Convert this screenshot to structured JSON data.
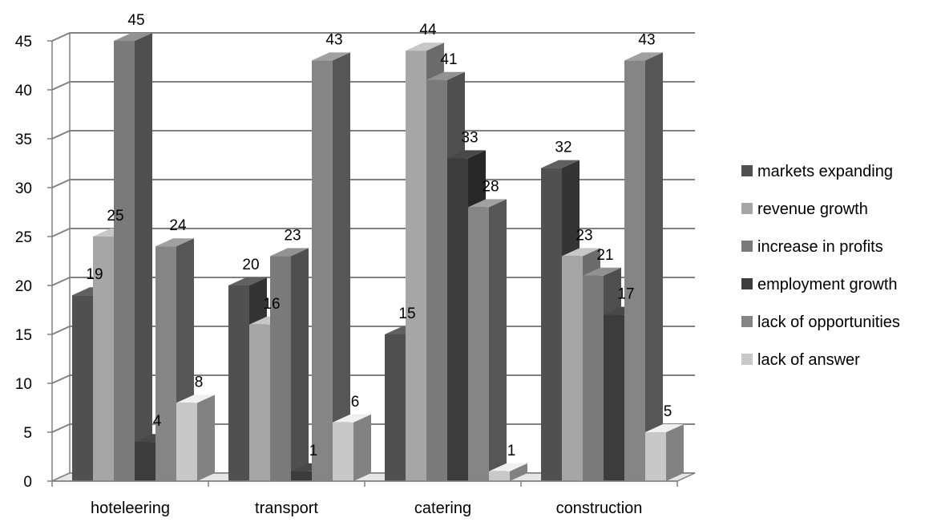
{
  "chart_data": {
    "type": "bar",
    "title": "",
    "xlabel": "",
    "ylabel": "",
    "categories": [
      "hoteleering",
      "transport",
      "catering",
      "construction"
    ],
    "ylim": [
      0,
      45
    ],
    "yticks": [
      0,
      5,
      10,
      15,
      20,
      25,
      30,
      35,
      40,
      45
    ],
    "grid": true,
    "legend_position": "right",
    "series": [
      {
        "name": "markets expanding",
        "values": [
          19,
          20,
          15,
          32
        ],
        "color": "#505050"
      },
      {
        "name": "revenue growth",
        "values": [
          25,
          16,
          44,
          23
        ],
        "color": "#a6a6a6"
      },
      {
        "name": "increase in profits",
        "values": [
          45,
          23,
          41,
          21
        ],
        "color": "#7a7a7a"
      },
      {
        "name": "employment growth",
        "values": [
          4,
          1,
          33,
          17
        ],
        "color": "#3c3c3c"
      },
      {
        "name": "lack of opportunities",
        "values": [
          24,
          43,
          28,
          43
        ],
        "color": "#858585"
      },
      {
        "name": "lack of answer",
        "values": [
          8,
          6,
          1,
          5
        ],
        "color": "#c8c8c8"
      }
    ]
  }
}
